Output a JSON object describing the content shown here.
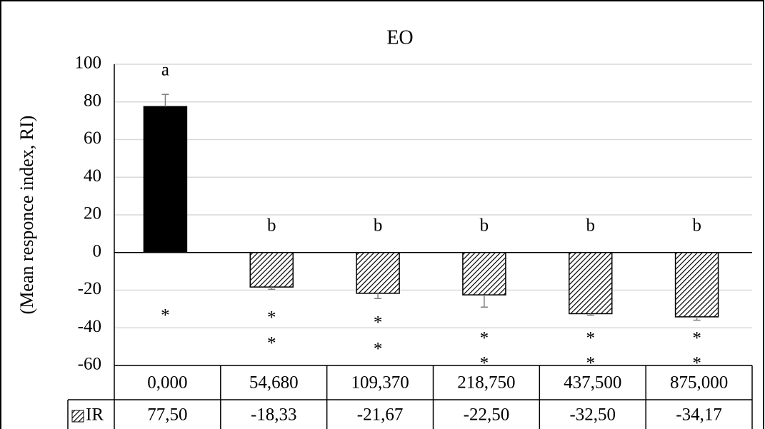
{
  "chart_data": {
    "type": "bar",
    "title": "EO",
    "y_label": "(Mean responce index, RI)",
    "categories": [
      "0,000",
      "54,680",
      "109,370",
      "218,750",
      "437,500",
      "875,000"
    ],
    "series": [
      {
        "name": "IR",
        "color": "#000000",
        "values": [
          77.5,
          -18.33,
          -21.67,
          -22.5,
          -32.5,
          -34.17
        ],
        "value_labels": [
          "77,50",
          "-18,33",
          "-21,67",
          "-22,50",
          "-32,50",
          "-34,17"
        ],
        "errors": [
          6.5,
          1.2,
          2.8,
          6.5,
          0.8,
          1.8
        ],
        "fills": [
          "solid",
          "hatch",
          "hatch",
          "hatch",
          "hatch",
          "hatch"
        ]
      }
    ],
    "letters": [
      "a",
      "b",
      "b",
      "b",
      "b",
      "b"
    ],
    "stars": [
      [
        "*"
      ],
      [
        "*",
        "*"
      ],
      [
        "*",
        "*"
      ],
      [
        "*",
        "*"
      ],
      [
        "*",
        "*"
      ],
      [
        "*",
        "*"
      ]
    ],
    "ylim": [
      -60,
      100
    ],
    "yticks": [
      -60,
      -40,
      -20,
      0,
      20,
      40,
      60,
      80,
      100
    ],
    "grid": true
  }
}
